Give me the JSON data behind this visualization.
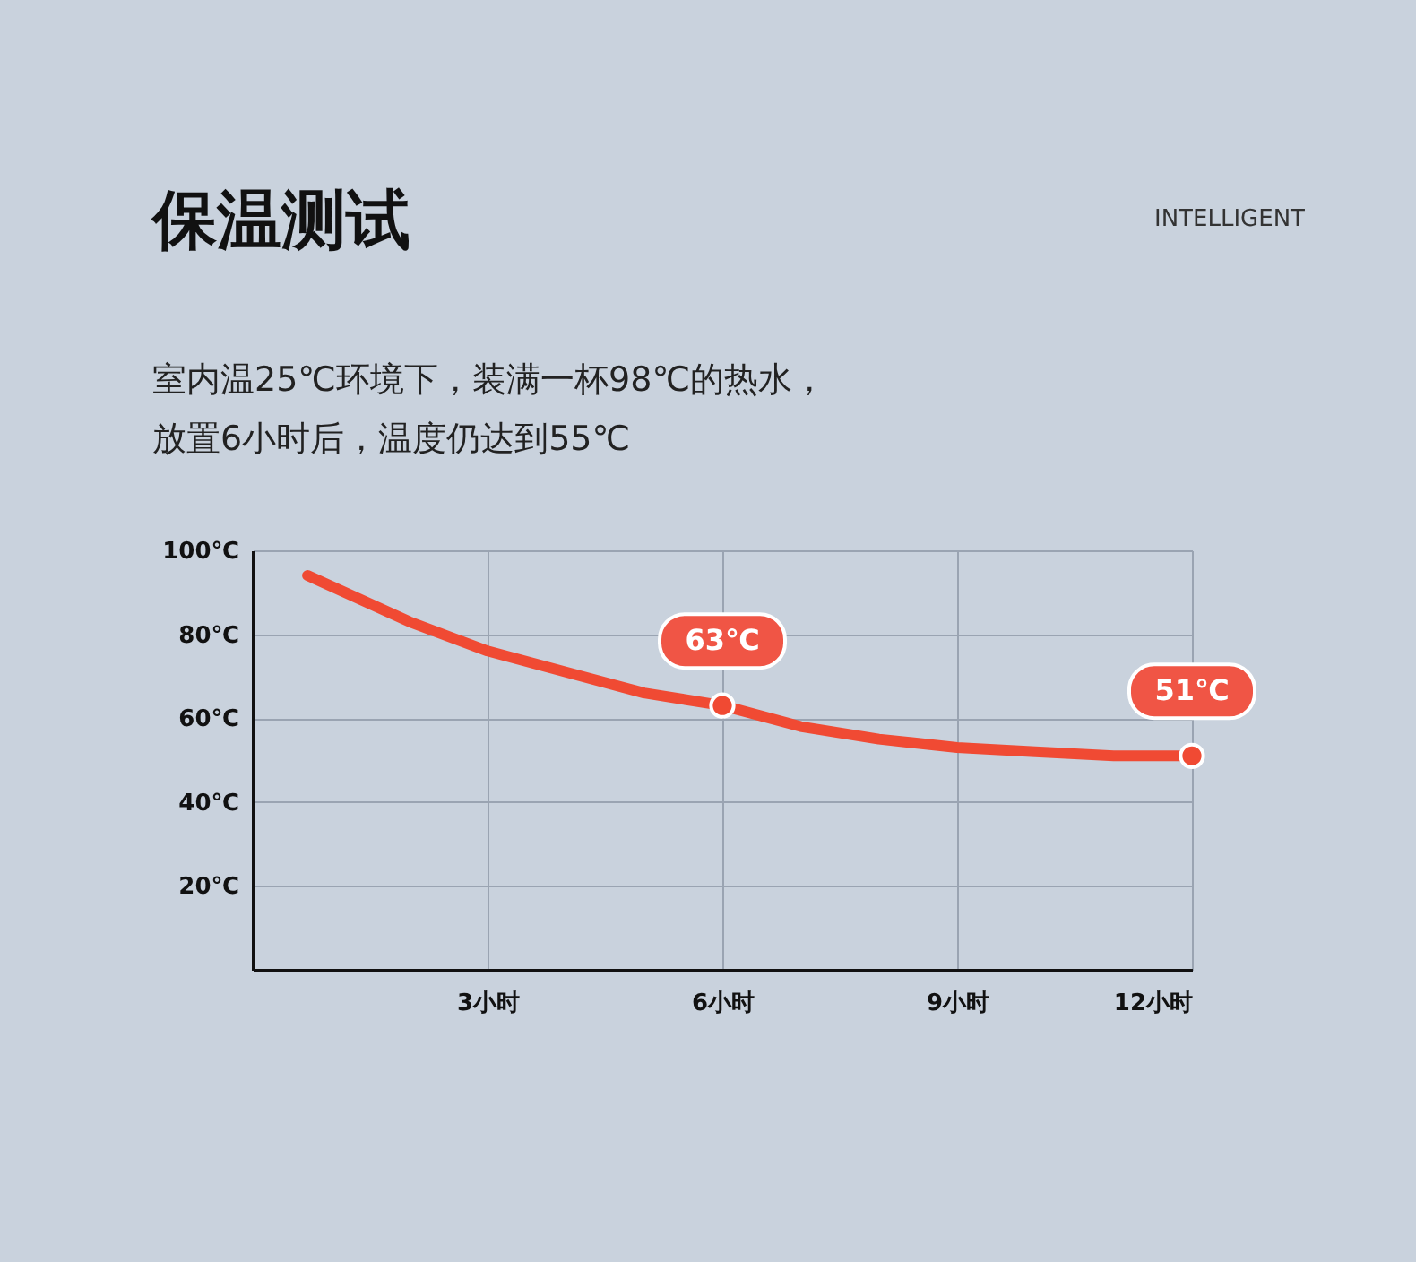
{
  "chart_data": {
    "type": "line",
    "title": "保温测试",
    "subtitle": [
      "室内温25℃环境下，装满一杯98℃的热水，",
      "放置6小时后，温度仍达到55℃"
    ],
    "x": [
      0.7,
      2,
      3,
      4,
      5,
      6,
      7,
      8,
      9,
      10,
      11,
      12
    ],
    "series": [
      {
        "color": "#f04a33",
        "values": [
          94,
          83,
          76,
          71,
          66,
          63,
          58,
          55,
          53,
          52,
          51,
          51
        ]
      }
    ],
    "xlim": [
      0,
      12
    ],
    "ylim": [
      0,
      100
    ],
    "xticks": [
      {
        "value": 3,
        "label": "3小时"
      },
      {
        "value": 6,
        "label": "6小时"
      },
      {
        "value": 9,
        "label": "9小时"
      },
      {
        "value": 12,
        "label": "12小时"
      }
    ],
    "yticks": [
      {
        "value": 20,
        "label": "20℃"
      },
      {
        "value": 40,
        "label": "40℃"
      },
      {
        "value": 60,
        "label": "60℃"
      },
      {
        "value": 80,
        "label": "80℃"
      },
      {
        "value": 100,
        "label": "100℃"
      }
    ],
    "grid": true,
    "marker": "none",
    "line_style": "solid",
    "annotations": [
      {
        "text": "63℃",
        "x": 6,
        "y": 63
      },
      {
        "text": "51℃",
        "x": 12,
        "y": 51
      },
      "INTELLIGENT"
    ]
  }
}
